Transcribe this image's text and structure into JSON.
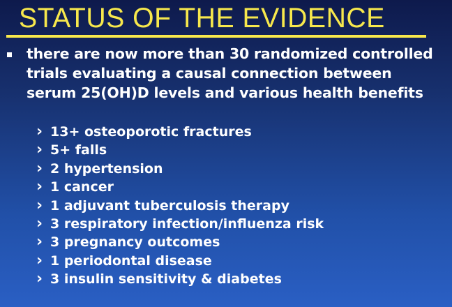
{
  "slide": {
    "title": "STATUS OF THE EVIDENCE",
    "main_bullet": "there are now more than 30 randomized controlled trials evaluating a causal connection between serum 25(OH)D levels and various health benefits",
    "sub_bullets": [
      "13+ osteoporotic fractures",
      "5+ falls",
      "2 hypertension",
      "1 cancer",
      "1 adjuvant tuberculosis therapy",
      "3 respiratory infection/influenza risk",
      "3 pregnancy outcomes",
      "1 periodontal disease",
      "3 insulin sensitivity  & diabetes"
    ]
  },
  "colors": {
    "title": "#f7e84c",
    "text": "#ffffff",
    "background_top": "#0e1a4c",
    "background_bottom": "#2a5fc4"
  }
}
